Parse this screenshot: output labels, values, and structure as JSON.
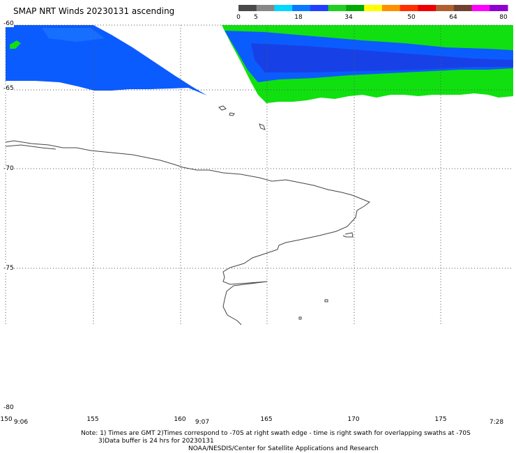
{
  "header": {
    "title": "SMAP NRT Winds 20230131 ascending"
  },
  "colorbar": {
    "labels": [
      "0",
      "5",
      "18",
      "34",
      "50",
      "64",
      "80"
    ],
    "segments": [
      "#4a4a4a",
      "#888888",
      "#00d8ff",
      "#0a78ff",
      "#2040ff",
      "#20d020",
      "#00aa00",
      "#ffff00",
      "#ff9000",
      "#ff3000",
      "#ee0000",
      "#b06030",
      "#704030",
      "#ff00ff",
      "#9000d0"
    ]
  },
  "map": {
    "lat_labels": [
      "-60",
      "-65",
      "-70",
      "-75",
      "-80"
    ],
    "lon_labels": [
      "150",
      "155",
      "160",
      "165",
      "170",
      "175"
    ],
    "times": [
      "9:06",
      "9:07",
      "7:28"
    ],
    "colors": {
      "wind_blue": "#0b5cff",
      "wind_deep_blue": "#1a3be0",
      "wind_green": "#10e010",
      "coastline": "#444444",
      "grid": "#555555"
    }
  },
  "footer": {
    "note_line1": "Note: 1) Times are GMT 2)Times correspond to -70S at right swath edge - time is right swath for overlapping swaths at -70S",
    "note_line2": "3)Data buffer is 24 hrs for 20230131",
    "credit": "NOAA/NESDIS/Center for Satellite Applications and Research"
  }
}
